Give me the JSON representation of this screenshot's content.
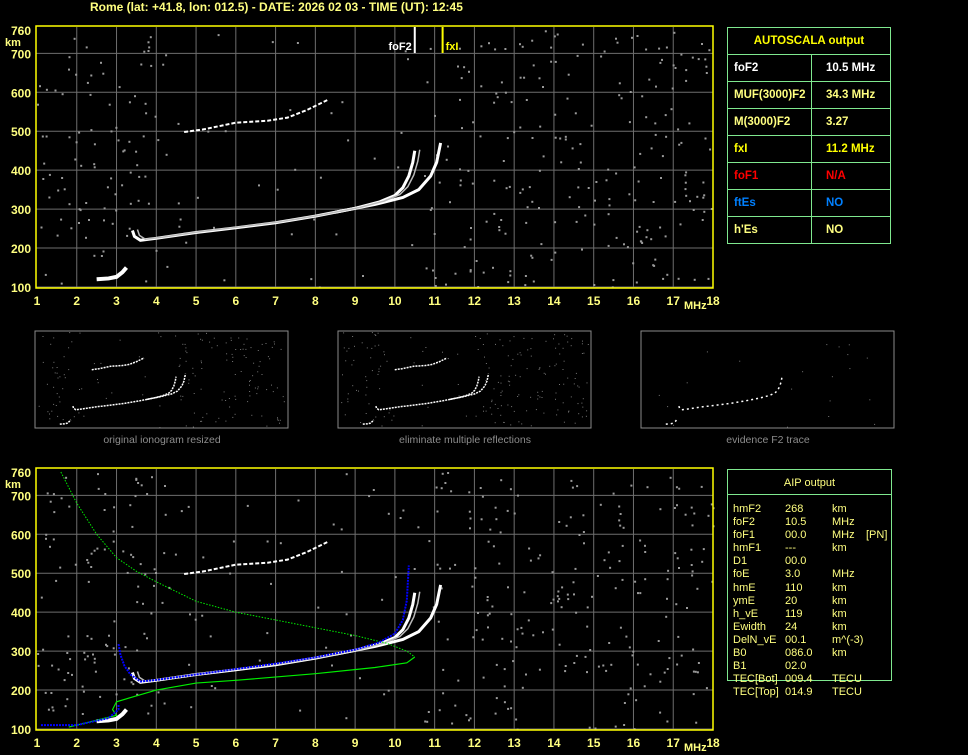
{
  "header": {
    "title": "Rome (lat: +41.8, lon: 012.5) - DATE: 2026 02 03 - TIME (UT): 12:45"
  },
  "colors": {
    "axis": "#ffff00",
    "label": "#ffff80",
    "grid": "#6e6e6e",
    "trace": "#ffffff",
    "noise": "#9a9a9a",
    "profile": "#00ee00",
    "aip_trace": "#0000ff",
    "table_border": "#7fe88f",
    "foF1": "#ff0000",
    "ftEs": "#0080ff"
  },
  "axes": {
    "y_unit": "km",
    "x_unit": "MHz",
    "y_ticks": [
      760,
      700,
      600,
      500,
      400,
      300,
      200,
      100
    ],
    "x_ticks": [
      1,
      2,
      3,
      4,
      5,
      6,
      7,
      8,
      9,
      10,
      11,
      12,
      13,
      14,
      15,
      16,
      17,
      18
    ],
    "x_range": [
      1,
      18
    ],
    "y_range": [
      100,
      760
    ]
  },
  "markers": {
    "foF2": {
      "label": "foF2",
      "freq": 10.5
    },
    "fxI": {
      "label": "fxI",
      "freq": 11.2
    }
  },
  "traces": {
    "E": [
      [
        2.5,
        120
      ],
      [
        2.8,
        122
      ],
      [
        3.0,
        126
      ],
      [
        3.15,
        138
      ],
      [
        3.25,
        150
      ]
    ],
    "O": [
      [
        3.4,
        245
      ],
      [
        3.45,
        230
      ],
      [
        3.6,
        220
      ],
      [
        4,
        225
      ],
      [
        5,
        240
      ],
      [
        6,
        252
      ],
      [
        7,
        265
      ],
      [
        8,
        282
      ],
      [
        9,
        302
      ],
      [
        9.6,
        318
      ],
      [
        10,
        335
      ],
      [
        10.2,
        355
      ],
      [
        10.35,
        385
      ],
      [
        10.45,
        420
      ],
      [
        10.5,
        450
      ]
    ],
    "X": [
      [
        8.5,
        292
      ],
      [
        9.5,
        312
      ],
      [
        10.2,
        330
      ],
      [
        10.6,
        350
      ],
      [
        10.9,
        385
      ],
      [
        11.05,
        420
      ],
      [
        11.15,
        470
      ]
    ],
    "second_hop": [
      [
        4.7,
        498
      ],
      [
        5.2,
        505
      ],
      [
        6,
        522
      ],
      [
        6.8,
        527
      ],
      [
        7.3,
        535
      ],
      [
        7.8,
        555
      ],
      [
        8.3,
        580
      ]
    ],
    "aip_blue": [
      [
        3.05,
        318
      ],
      [
        3.1,
        290
      ],
      [
        3.2,
        262
      ],
      [
        3.35,
        240
      ],
      [
        3.6,
        222
      ],
      [
        4,
        226
      ],
      [
        5,
        240
      ],
      [
        6,
        254
      ],
      [
        7,
        268
      ],
      [
        8,
        284
      ],
      [
        9,
        304
      ],
      [
        9.6,
        322
      ],
      [
        10,
        345
      ],
      [
        10.2,
        380
      ],
      [
        10.3,
        430
      ],
      [
        10.35,
        520
      ]
    ],
    "aip_blue_E": [
      [
        1.1,
        110
      ],
      [
        2,
        110
      ],
      [
        2.8,
        128
      ],
      [
        3.05,
        150
      ],
      [
        3.05,
        162
      ]
    ]
  },
  "profile": {
    "upper": [
      [
        1.6,
        760
      ],
      [
        2,
        680
      ],
      [
        2.5,
        600
      ],
      [
        3,
        540
      ],
      [
        3.5,
        505
      ],
      [
        4,
        478
      ],
      [
        5,
        428
      ],
      [
        6,
        400
      ],
      [
        7,
        380
      ],
      [
        8,
        360
      ],
      [
        9,
        340
      ],
      [
        9.8,
        320
      ],
      [
        10.3,
        300
      ],
      [
        10.5,
        285
      ]
    ],
    "lower": [
      [
        10.5,
        285
      ],
      [
        10.3,
        270
      ],
      [
        9.5,
        258
      ],
      [
        8,
        242
      ],
      [
        6,
        225
      ],
      [
        5,
        218
      ],
      [
        4,
        200
      ],
      [
        3,
        170
      ],
      [
        2.9,
        150
      ],
      [
        3.0,
        135
      ],
      [
        2.6,
        125
      ],
      [
        2.2,
        115
      ],
      [
        1.8,
        105
      ]
    ]
  },
  "autoscala": {
    "title": "AUTOSCALA output",
    "rows": [
      {
        "label": "foF2",
        "value": "10.5 MHz",
        "color": "#ffffff"
      },
      {
        "label": "MUF(3000)F2",
        "value": "34.3 MHz",
        "color": "#ffff80"
      },
      {
        "label": "M(3000)F2",
        "value": "3.27",
        "color": "#ffff80"
      },
      {
        "label": "fxI",
        "value": "11.2 MHz",
        "color": "#ffff00"
      },
      {
        "label": "foF1",
        "value": "N/A",
        "color": "#ff0000"
      },
      {
        "label": "ftEs",
        "value": "NO",
        "color": "#0080ff"
      },
      {
        "label": "h'Es",
        "value": "NO",
        "color": "#ffff80"
      }
    ]
  },
  "aip": {
    "title": "AIP output",
    "rows": [
      [
        "hmF2",
        "268",
        "km",
        ""
      ],
      [
        "foF2",
        "10.5",
        "MHz",
        ""
      ],
      [
        "foF1",
        "00.0",
        "MHz",
        "[PN]"
      ],
      [
        "hmF1",
        "---",
        "km",
        ""
      ],
      [
        "D1",
        "00.0",
        "",
        ""
      ],
      [
        "foE",
        "3.0",
        "MHz",
        ""
      ],
      [
        "hmE",
        "110",
        "km",
        ""
      ],
      [
        "ymE",
        "20",
        "km",
        ""
      ],
      [
        "h_vE",
        "119",
        "km",
        ""
      ],
      [
        "Ewidth",
        "24",
        "km",
        ""
      ],
      [
        "DelN_vE",
        "00.1",
        "m^(-3)",
        ""
      ],
      [
        "B0",
        "086.0",
        "km",
        ""
      ],
      [
        "B1",
        "02.0",
        "",
        ""
      ],
      [
        "TEC[Bot]",
        "009.4",
        "TECU",
        ""
      ],
      [
        "TEC[Top]",
        "014.9",
        "TECU",
        ""
      ]
    ]
  },
  "thumbnails": [
    {
      "caption": "original ionogram resized"
    },
    {
      "caption": "eliminate multiple reflections"
    },
    {
      "caption": "evidence F2 trace"
    }
  ]
}
